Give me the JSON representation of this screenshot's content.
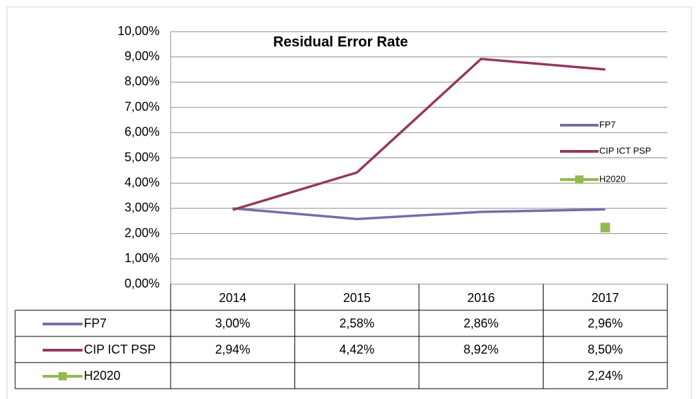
{
  "chart_data": {
    "type": "line",
    "title": "Residual Error Rate",
    "categories": [
      "2014",
      "2015",
      "2016",
      "2017"
    ],
    "series": [
      {
        "name": "FP7",
        "color": "#7070a8",
        "values": [
          3.0,
          2.58,
          2.86,
          2.96
        ],
        "value_labels": [
          "3,00%",
          "2,58%",
          "2,86%",
          "2,96%"
        ]
      },
      {
        "name": "CIP ICT PSP",
        "color": "#953762",
        "values": [
          2.94,
          4.42,
          8.92,
          8.5
        ],
        "value_labels": [
          "2,94%",
          "4,42%",
          "8,92%",
          "8,50%"
        ]
      },
      {
        "name": "H2020",
        "color": "#93ba4d",
        "marker": "square",
        "values": [
          null,
          null,
          null,
          2.24
        ],
        "value_labels": [
          null,
          null,
          null,
          "2,24%"
        ]
      }
    ],
    "ylim": [
      0,
      10
    ],
    "yticks": [
      {
        "value": 0,
        "label": "0,00%"
      },
      {
        "value": 1,
        "label": "1,00%"
      },
      {
        "value": 2,
        "label": "2,00%"
      },
      {
        "value": 3,
        "label": "3,00%"
      },
      {
        "value": 4,
        "label": "4,00%"
      },
      {
        "value": 5,
        "label": "5,00%"
      },
      {
        "value": 6,
        "label": "6,00%"
      },
      {
        "value": 7,
        "label": "7,00%"
      },
      {
        "value": 8,
        "label": "8,00%"
      },
      {
        "value": 9,
        "label": "9,00%"
      },
      {
        "value": 10,
        "label": "10,00%"
      }
    ],
    "grid": true,
    "legend": "right",
    "data_table": true
  }
}
